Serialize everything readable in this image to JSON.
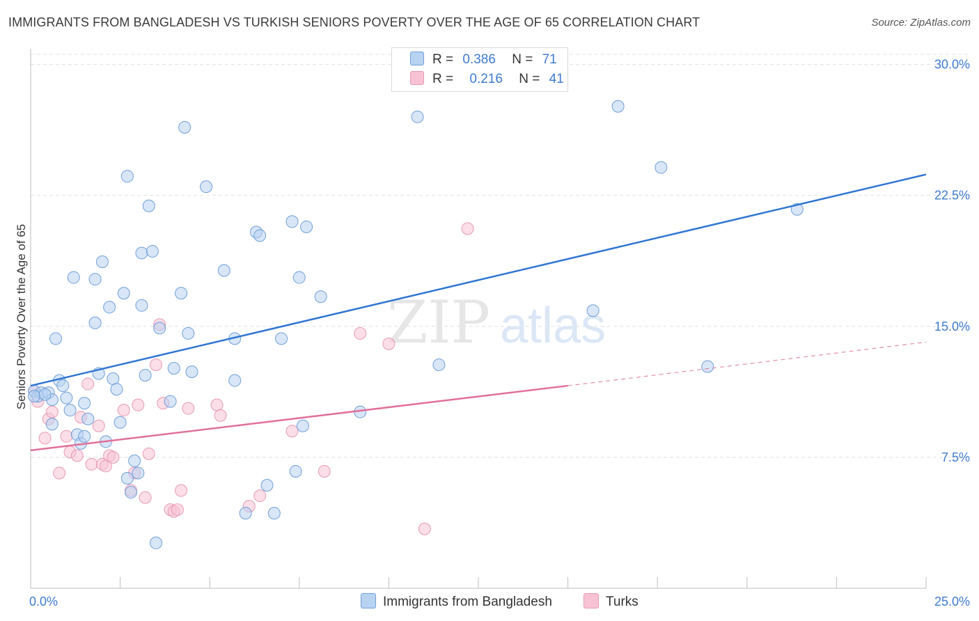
{
  "title": "IMMIGRANTS FROM BANGLADESH VS TURKISH SENIORS POVERTY OVER THE AGE OF 65 CORRELATION CHART",
  "source": "Source: ZipAtlas.com",
  "watermark": {
    "part1": "ZIP",
    "part2": "atlas"
  },
  "legend": {
    "rows": [
      {
        "r_label": "R =",
        "r_value": "0.386",
        "n_label": "N =",
        "n_value": "71"
      },
      {
        "r_label": "R =",
        "r_value": "0.216",
        "n_label": "N =",
        "n_value": "41"
      }
    ]
  },
  "bottom_legend": {
    "series1": "Immigrants from Bangladesh",
    "series2": "Turks"
  },
  "colors": {
    "blue_fill": "#b8d2f2",
    "blue_stroke": "#6f9fd8",
    "blue_line": "#2f76d2",
    "pink_fill": "#f7c3d4",
    "pink_stroke": "#e899b4",
    "pink_line": "#e0709a",
    "tick_label": "#3d7bd0",
    "grid": "#e0e0e0"
  },
  "chart_data": {
    "type": "scatter",
    "title": "IMMIGRANTS FROM BANGLADESH VS TURKISH SENIORS POVERTY OVER THE AGE OF 65 CORRELATION CHART",
    "xlabel": "",
    "ylabel": "Seniors Poverty Over the Age of 65",
    "xlim": [
      0,
      25
    ],
    "ylim": [
      0,
      30.9
    ],
    "x_tick_labels": [
      "0.0%",
      "25.0%"
    ],
    "y_ticks": [
      7.5,
      15.0,
      22.5,
      30.0
    ],
    "y_tick_labels": [
      "7.5%",
      "15.0%",
      "22.5%",
      "30.0%"
    ],
    "grid": true,
    "legend_position": "top-center",
    "series": [
      {
        "name": "Immigrants from Bangladesh",
        "R": 0.386,
        "N": 71,
        "trend": {
          "x0": 0,
          "y0": 11.6,
          "x1": 25,
          "y1": 23.7
        },
        "points": [
          [
            0.1,
            11.3
          ],
          [
            0.2,
            11.0
          ],
          [
            0.3,
            11.2
          ],
          [
            0.5,
            11.2
          ],
          [
            0.6,
            10.8
          ],
          [
            0.7,
            14.3
          ],
          [
            0.8,
            11.9
          ],
          [
            0.9,
            11.6
          ],
          [
            0.6,
            9.4
          ],
          [
            1.0,
            10.9
          ],
          [
            1.1,
            10.2
          ],
          [
            1.2,
            17.8
          ],
          [
            1.3,
            8.8
          ],
          [
            1.4,
            8.3
          ],
          [
            1.5,
            8.7
          ],
          [
            1.5,
            10.6
          ],
          [
            1.6,
            9.7
          ],
          [
            1.8,
            17.7
          ],
          [
            1.8,
            15.2
          ],
          [
            1.9,
            12.3
          ],
          [
            2.0,
            18.7
          ],
          [
            2.1,
            8.4
          ],
          [
            2.2,
            16.1
          ],
          [
            2.3,
            12.0
          ],
          [
            2.4,
            11.4
          ],
          [
            2.5,
            9.5
          ],
          [
            2.6,
            16.9
          ],
          [
            2.7,
            6.3
          ],
          [
            2.7,
            23.6
          ],
          [
            2.8,
            5.5
          ],
          [
            2.9,
            7.3
          ],
          [
            3.0,
            6.6
          ],
          [
            3.1,
            19.2
          ],
          [
            3.1,
            16.2
          ],
          [
            3.2,
            12.2
          ],
          [
            3.3,
            21.9
          ],
          [
            3.4,
            19.3
          ],
          [
            3.5,
            2.6
          ],
          [
            3.6,
            14.9
          ],
          [
            3.9,
            10.7
          ],
          [
            4.0,
            12.6
          ],
          [
            4.2,
            16.9
          ],
          [
            4.3,
            26.4
          ],
          [
            4.4,
            14.6
          ],
          [
            4.5,
            12.4
          ],
          [
            4.9,
            23.0
          ],
          [
            5.4,
            18.2
          ],
          [
            5.7,
            14.3
          ],
          [
            5.7,
            11.9
          ],
          [
            6.0,
            4.3
          ],
          [
            6.3,
            20.4
          ],
          [
            6.4,
            20.2
          ],
          [
            6.6,
            5.9
          ],
          [
            6.8,
            4.3
          ],
          [
            7.0,
            14.3
          ],
          [
            7.3,
            21.0
          ],
          [
            7.4,
            6.7
          ],
          [
            7.5,
            17.8
          ],
          [
            7.6,
            9.3
          ],
          [
            7.7,
            20.7
          ],
          [
            8.1,
            16.7
          ],
          [
            9.2,
            10.1
          ],
          [
            10.8,
            27.0
          ],
          [
            11.4,
            12.8
          ],
          [
            15.7,
            15.9
          ],
          [
            16.4,
            27.6
          ],
          [
            17.6,
            24.1
          ],
          [
            18.9,
            12.7
          ],
          [
            21.4,
            21.7
          ],
          [
            0.1,
            11.0
          ],
          [
            0.4,
            11.1
          ]
        ]
      },
      {
        "name": "Turks",
        "R": 0.216,
        "N": 41,
        "trend": {
          "x0": 0,
          "y0": 7.9,
          "x1": 15.0,
          "y1": 11.6,
          "dash_x1": 25,
          "dash_y1": 14.1
        },
        "points": [
          [
            0.1,
            11.3
          ],
          [
            0.2,
            10.7
          ],
          [
            0.4,
            8.6
          ],
          [
            0.5,
            9.7
          ],
          [
            0.6,
            10.1
          ],
          [
            0.8,
            6.6
          ],
          [
            1.0,
            8.7
          ],
          [
            1.1,
            7.8
          ],
          [
            1.3,
            7.6
          ],
          [
            1.4,
            9.8
          ],
          [
            1.6,
            11.7
          ],
          [
            1.7,
            7.1
          ],
          [
            1.9,
            9.3
          ],
          [
            2.0,
            7.1
          ],
          [
            2.1,
            7.0
          ],
          [
            2.2,
            7.6
          ],
          [
            2.3,
            7.5
          ],
          [
            2.6,
            10.2
          ],
          [
            2.8,
            5.6
          ],
          [
            2.9,
            6.6
          ],
          [
            3.0,
            10.5
          ],
          [
            3.2,
            5.2
          ],
          [
            3.3,
            7.7
          ],
          [
            3.5,
            12.8
          ],
          [
            3.6,
            15.1
          ],
          [
            3.7,
            10.6
          ],
          [
            3.9,
            4.5
          ],
          [
            4.0,
            4.4
          ],
          [
            4.1,
            4.5
          ],
          [
            4.2,
            5.6
          ],
          [
            4.4,
            10.3
          ],
          [
            5.2,
            10.5
          ],
          [
            5.3,
            9.9
          ],
          [
            6.1,
            4.7
          ],
          [
            6.4,
            5.3
          ],
          [
            7.3,
            9.0
          ],
          [
            8.2,
            6.7
          ],
          [
            9.2,
            14.6
          ],
          [
            10.0,
            14.0
          ],
          [
            11.0,
            3.4
          ],
          [
            12.2,
            20.6
          ]
        ]
      }
    ]
  }
}
